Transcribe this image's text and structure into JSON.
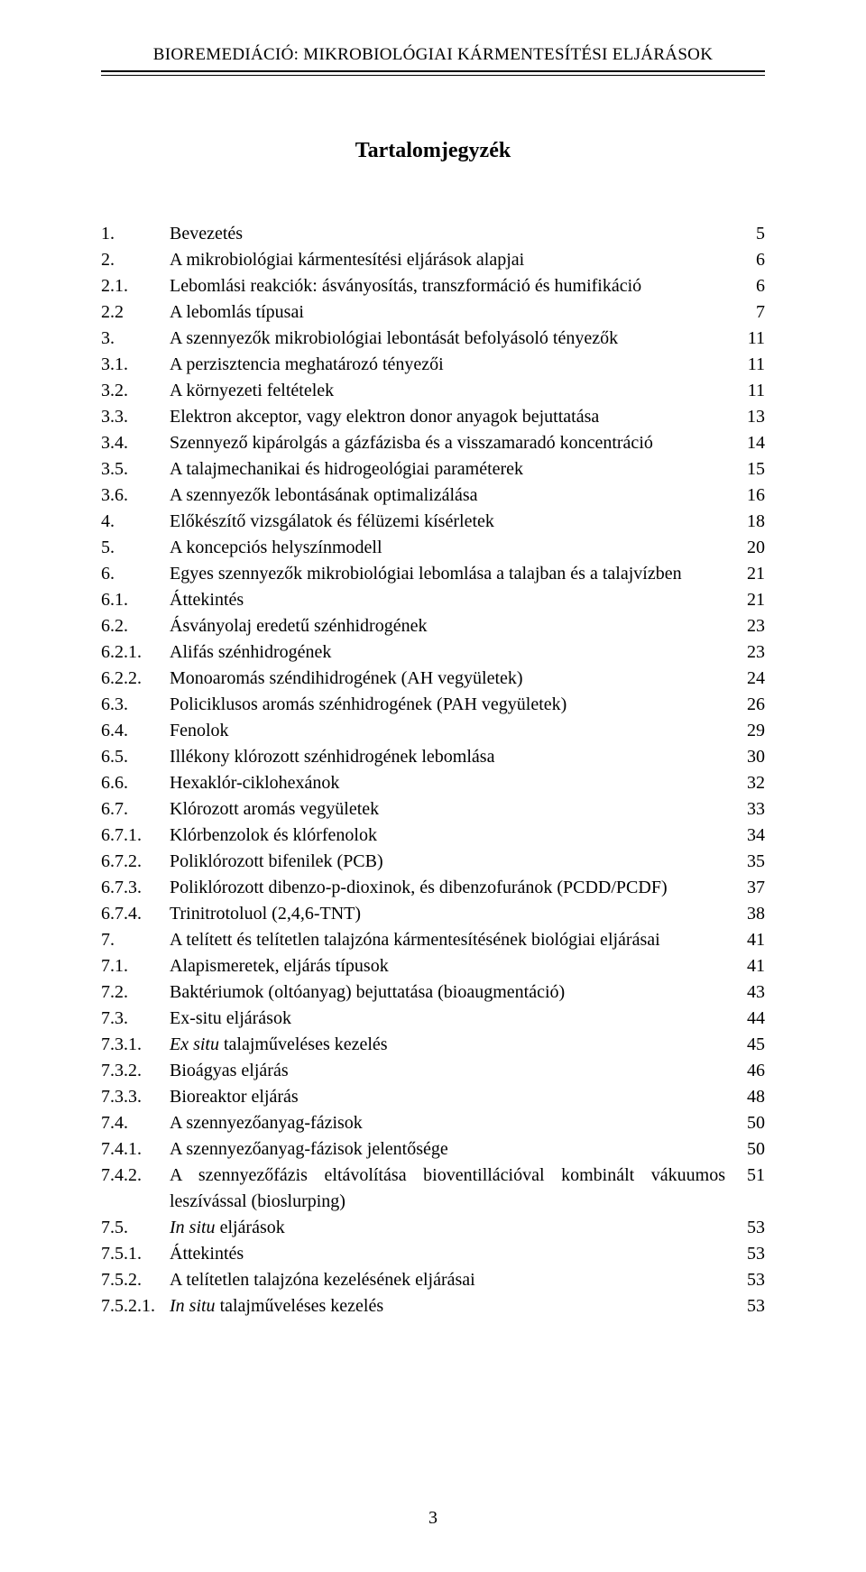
{
  "header": {
    "running_title": "BIOREMEDIÁCIÓ: MIKROBIOLÓGIAI KÁRMENTESÍTÉSI ELJÁRÁSOK"
  },
  "title": "Tartalomjegyzék",
  "page_number": "3",
  "toc": [
    {
      "num": "1.",
      "text": "Bevezetés",
      "page": "5"
    },
    {
      "num": "2.",
      "text": "A mikrobiológiai kármentesítési eljárások alapjai",
      "page": "6"
    },
    {
      "num": "2.1.",
      "text": "Lebomlási reakciók: ásványosítás, transzformáció és humifikáció",
      "page": "6"
    },
    {
      "num": "2.2",
      "text": "A lebomlás típusai",
      "page": "7"
    },
    {
      "num": "3.",
      "text": "A szennyezők mikrobiológiai lebontását befolyásoló tényezők",
      "page": "11"
    },
    {
      "num": "3.1.",
      "text": "A perzisztencia meghatározó tényezői",
      "page": "11"
    },
    {
      "num": "3.2.",
      "text": "A környezeti feltételek",
      "page": "11"
    },
    {
      "num": "3.3.",
      "text": "Elektron akceptor, vagy elektron donor anyagok bejuttatása",
      "page": "13"
    },
    {
      "num": "3.4.",
      "text": "Szennyező kipárolgás a gázfázisba és a visszamaradó koncentráció",
      "page": "14"
    },
    {
      "num": "3.5.",
      "text": "A talajmechanikai és hidrogeológiai paraméterek",
      "page": "15"
    },
    {
      "num": "3.6.",
      "text": "A szennyezők lebontásának optimalizálása",
      "page": "16"
    },
    {
      "num": "4.",
      "text": "Előkészítő vizsgálatok és félüzemi kísérletek",
      "page": "18"
    },
    {
      "num": "5.",
      "text": "A koncepciós helyszínmodell",
      "page": "20"
    },
    {
      "num": "6.",
      "text": "Egyes szennyezők mikrobiológiai lebomlása a talajban és a talajvízben",
      "page": "21"
    },
    {
      "num": "6.1.",
      "text": "Áttekintés",
      "page": "21"
    },
    {
      "num": "6.2.",
      "text": "Ásványolaj eredetű szénhidrogének",
      "page": "23"
    },
    {
      "num": "6.2.1.",
      "text": "Alifás szénhidrogének",
      "page": "23"
    },
    {
      "num": "6.2.2.",
      "text": "Monoaromás széndihidrogének (AH vegyületek)",
      "page": "24"
    },
    {
      "num": "6.3.",
      "text": "Policiklusos aromás szénhidrogének (PAH vegyületek)",
      "page": "26"
    },
    {
      "num": "6.4.",
      "text": "Fenolok",
      "page": "29"
    },
    {
      "num": "6.5.",
      "text": "Illékony klórozott szénhidrogének lebomlása",
      "page": "30"
    },
    {
      "num": "6.6.",
      "text": "Hexaklór-ciklohexánok",
      "page": "32"
    },
    {
      "num": "6.7.",
      "text": "Klórozott aromás vegyületek",
      "page": "33"
    },
    {
      "num": "6.7.1.",
      "text": "Klórbenzolok és klórfenolok",
      "page": "34"
    },
    {
      "num": "6.7.2.",
      "text": "Poliklórozott bifenilek (PCB)",
      "page": "35"
    },
    {
      "num": "6.7.3.",
      "text": "Poliklórozott dibenzo-p-dioxinok, és dibenzofuránok (PCDD/PCDF)",
      "page": "37"
    },
    {
      "num": "6.7.4.",
      "text": "Trinitrotoluol (2,4,6-TNT)",
      "page": "38"
    },
    {
      "num": "7.",
      "text": "A telített és telítetlen talajzóna kármentesítésének biológiai eljárásai",
      "page": "41"
    },
    {
      "num": "7.1.",
      "text": "Alapismeretek, eljárás típusok",
      "page": "41"
    },
    {
      "num": "7.2.",
      "text": "Baktériumok (oltóanyag) bejuttatása (bioaugmentáció)",
      "page": "43"
    },
    {
      "num": "7.3.",
      "text": "Ex-situ eljárások",
      "page": "44"
    },
    {
      "num": "7.3.1.",
      "text": "Ex situ talajműveléses kezelés",
      "page": "45",
      "italic_prefix": "Ex situ",
      "plain_suffix": " talajműveléses kezelés"
    },
    {
      "num": "7.3.2.",
      "text": "Bioágyas eljárás",
      "page": "46"
    },
    {
      "num": "7.3.3.",
      "text": "Bioreaktor eljárás",
      "page": "48"
    },
    {
      "num": "7.4.",
      "text": "A szennyezőanyag-fázisok",
      "page": "50"
    },
    {
      "num": "7.4.1.",
      "text": "A szennyezőanyag-fázisok jelentősége",
      "page": "50"
    },
    {
      "num": "7.4.2.",
      "text": "A szennyezőfázis eltávolítása bioventillációval kombinált vákuumos leszívással (bioslurping)",
      "page": "51"
    },
    {
      "num": "7.5.",
      "text": "In situ eljárások",
      "page": "53",
      "italic_prefix": "In situ",
      "plain_suffix": " eljárások"
    },
    {
      "num": "7.5.1.",
      "text": "Áttekintés",
      "page": "53"
    },
    {
      "num": "7.5.2.",
      "text": "A telítetlen talajzóna kezelésének eljárásai",
      "page": "53"
    },
    {
      "num": "7.5.2.1.",
      "text": "In situ talajműveléses kezelés",
      "page": "53",
      "italic_prefix": "In situ",
      "plain_suffix": " talajműveléses kezelés"
    }
  ]
}
